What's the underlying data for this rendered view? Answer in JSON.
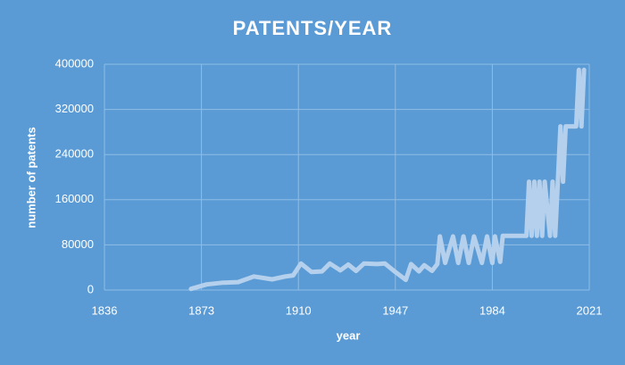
{
  "chart_data": {
    "type": "line",
    "title": "PATENTS/YEAR",
    "x_label": "year",
    "y_label": "number of patents",
    "xlim": [
      1836,
      2021
    ],
    "xticks": [
      1836,
      1873,
      1910,
      1947,
      1984,
      2021
    ],
    "ylim": [
      0,
      400000
    ],
    "yticks": [
      0,
      80000,
      160000,
      240000,
      320000,
      400000
    ],
    "grid": true,
    "series": [
      {
        "name": "patents",
        "color": "#b4d0ec",
        "x": [
          1869,
          1875,
          1881,
          1887,
          1893,
          1900,
          1905,
          1908,
          1911,
          1915,
          1919,
          1922,
          1926,
          1929,
          1932,
          1935,
          1940,
          1943,
          1947,
          1951,
          1953,
          1956,
          1958,
          1961,
          1963,
          1964,
          1966,
          1969,
          1971,
          1973,
          1975,
          1977,
          1980,
          1982,
          1984,
          1985,
          1987,
          1988,
          1997,
          1998,
          1999,
          2000,
          2001,
          2002,
          2003,
          2004,
          2006,
          2007,
          2008,
          2009,
          2010,
          2011,
          2012,
          2016,
          2017,
          2018,
          2019
        ],
        "values": [
          2000,
          10000,
          13000,
          14000,
          24000,
          19000,
          24000,
          26000,
          47000,
          32000,
          33000,
          47000,
          35000,
          45000,
          34000,
          47000,
          46000,
          47000,
          32000,
          18000,
          46000,
          33000,
          44000,
          34000,
          46000,
          95000,
          48000,
          95000,
          48000,
          95000,
          48000,
          95000,
          48000,
          95000,
          48000,
          95000,
          50000,
          96000,
          96000,
          192000,
          96000,
          192000,
          96000,
          192000,
          96000,
          192000,
          96000,
          192000,
          96000,
          192000,
          290000,
          192000,
          290000,
          290000,
          390000,
          290000,
          390000
        ]
      }
    ]
  }
}
